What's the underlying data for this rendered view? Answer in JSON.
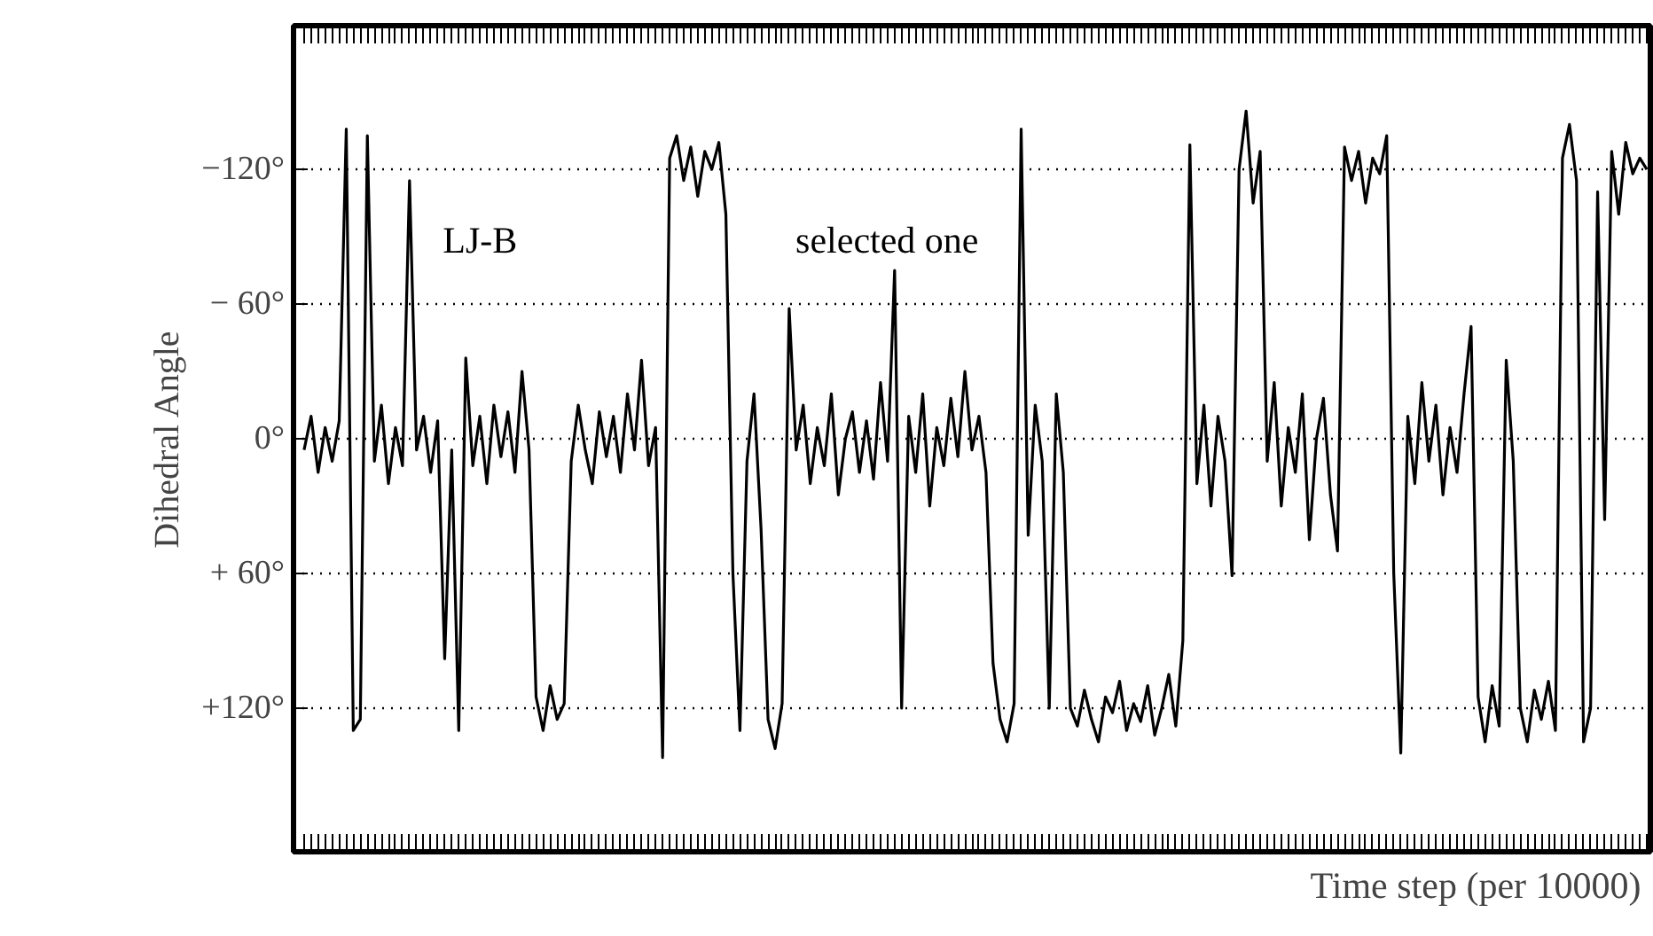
{
  "chart_data": {
    "type": "line",
    "xlabel": "Time step  (per 10000)",
    "ylabel": "Dihedral Angle",
    "annotations": [
      "LJ-B",
      "selected one"
    ],
    "categories": [
      null,
      null,
      null,
      null,
      null,
      null,
      null,
      null,
      null,
      null,
      null,
      null,
      null,
      null,
      null,
      null,
      null,
      null,
      null,
      null,
      null,
      null,
      null,
      null,
      null,
      null,
      null,
      null,
      null,
      null,
      null,
      null,
      null,
      null,
      null,
      null,
      null,
      null,
      null,
      null,
      null,
      null,
      null,
      null,
      null,
      null,
      null,
      null,
      null,
      null,
      null,
      null,
      null,
      null,
      null,
      null,
      null,
      null,
      null,
      null,
      null,
      null,
      null,
      null,
      null,
      null,
      null,
      null,
      null,
      null,
      null,
      null,
      null,
      null,
      null,
      null,
      null,
      null,
      null,
      null,
      null,
      null,
      null,
      null,
      null,
      null,
      null,
      null,
      null,
      null,
      null,
      null,
      null,
      null,
      null,
      null,
      null,
      null,
      null,
      null,
      null,
      null,
      null,
      null,
      null,
      null,
      null,
      null,
      null,
      null,
      null,
      null,
      null,
      null,
      null,
      null,
      null,
      null,
      null,
      null,
      null,
      null,
      null,
      null,
      null,
      null,
      null,
      null,
      null,
      null,
      null,
      null,
      null,
      null,
      null,
      null,
      null,
      null,
      null,
      null,
      null,
      null,
      null,
      null,
      null,
      null,
      null,
      null,
      null,
      null,
      null,
      null,
      null,
      null,
      null,
      null,
      null,
      null,
      null,
      null,
      null,
      null,
      null,
      null,
      null,
      null,
      null,
      null,
      null,
      null,
      null,
      null,
      null,
      null,
      null,
      null,
      null,
      null,
      null,
      null,
      null,
      null,
      null,
      null,
      null,
      null,
      null,
      null,
      null,
      null,
      null,
      null
    ],
    "series": [
      {
        "color": "#000000",
        "values": [
          5,
          -10,
          15,
          -5,
          10,
          -8,
          -138,
          130,
          125,
          -135,
          10,
          -15,
          20,
          -5,
          12,
          -115,
          5,
          -10,
          15,
          -8,
          98,
          5,
          130,
          -36,
          12,
          -10,
          20,
          -15,
          8,
          -12,
          15,
          -30,
          5,
          115,
          130,
          110,
          125,
          118,
          10,
          -15,
          5,
          20,
          -12,
          8,
          -10,
          15,
          -20,
          5,
          -35,
          12,
          -5,
          142,
          -125,
          -135,
          -115,
          -130,
          -108,
          -128,
          -120,
          -132,
          -100,
          60,
          130,
          10,
          -20,
          40,
          125,
          138,
          118,
          -58,
          5,
          -15,
          20,
          -5,
          12,
          -20,
          25,
          0,
          -12,
          15,
          -8,
          18,
          -25,
          10,
          -75,
          120,
          -10,
          15,
          -20,
          30,
          -5,
          12,
          -18,
          8,
          -30,
          5,
          -10,
          15,
          100,
          125,
          135,
          118,
          -138,
          43,
          -15,
          10,
          120,
          -20,
          15,
          120,
          128,
          112,
          125,
          135,
          115,
          122,
          108,
          130,
          118,
          126,
          110,
          132,
          120,
          105,
          128,
          90,
          -131,
          20,
          -15,
          30,
          -10,
          10,
          61,
          -120,
          -146,
          -105,
          -128,
          10,
          -25,
          30,
          -5,
          15,
          -20,
          45,
          0,
          -18,
          25,
          50,
          -130,
          -115,
          -128,
          -105,
          -125,
          -118,
          -135,
          60,
          140,
          -10,
          20,
          -25,
          10,
          -15,
          25,
          -5,
          15,
          -20,
          -50,
          115,
          135,
          110,
          128,
          -35,
          10,
          120,
          135,
          112,
          125,
          108,
          130,
          -125,
          -140,
          -115,
          135,
          120,
          -110,
          36,
          -128,
          -100,
          -132,
          -118,
          -125,
          -120
        ]
      }
    ],
    "ylim": [
      184,
      -184
    ],
    "yticks": [
      {
        "value": -120,
        "label": "−120°"
      },
      {
        "value": -60,
        "label": "− 60°"
      },
      {
        "value": 0,
        "label": "0°"
      },
      {
        "value": 60,
        "label": "+ 60°"
      },
      {
        "value": 120,
        "label": "+120°"
      }
    ],
    "grid": "y",
    "marker": "none",
    "line_style": "solid"
  }
}
